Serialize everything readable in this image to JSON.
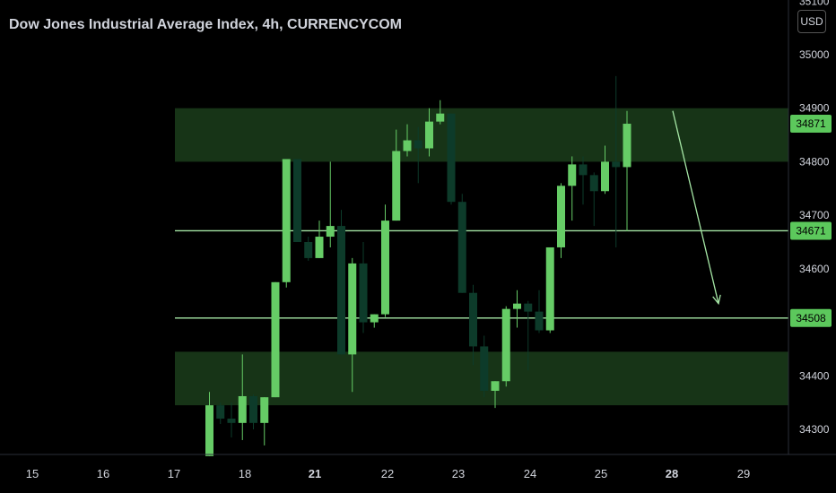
{
  "header": {
    "title": "Dow Jones Industrial Average Index, 4h, CURRENCYCOM",
    "currency": "USD"
  },
  "colors": {
    "background": "#000000",
    "bull": "#66cc66",
    "bear": "#0d3b2a",
    "level": "#a5e6a5",
    "zone": "#1a3a1a",
    "label_bg": "#5cc85c"
  },
  "chart_data": {
    "type": "candlestick",
    "symbol": "Dow Jones Industrial Average Index",
    "interval": "4h",
    "source": "CURRENCYCOM",
    "y_axis": {
      "ticks": [
        34300,
        34400,
        34500,
        34600,
        34700,
        34800,
        34900,
        35000,
        35100
      ],
      "range": [
        34270,
        35110
      ]
    },
    "x_axis": {
      "ticks": [
        {
          "label": "15",
          "bold": false
        },
        {
          "label": "16",
          "bold": false
        },
        {
          "label": "17",
          "bold": false
        },
        {
          "label": "18",
          "bold": false
        },
        {
          "label": "21",
          "bold": true
        },
        {
          "label": "22",
          "bold": false
        },
        {
          "label": "23",
          "bold": false
        },
        {
          "label": "24",
          "bold": false
        },
        {
          "label": "25",
          "bold": false
        },
        {
          "label": "28",
          "bold": true
        },
        {
          "label": "29",
          "bold": false
        }
      ]
    },
    "price_labels": [
      {
        "value": "34871",
        "price": 34871
      },
      {
        "value": "34671",
        "price": 34671
      },
      {
        "value": "34508",
        "price": 34508
      }
    ],
    "horizontal_levels": [
      34671,
      34508
    ],
    "zones": [
      {
        "top": 34900,
        "bottom": 34800
      },
      {
        "top": 34445,
        "bottom": 34345
      }
    ],
    "candles": [
      {
        "o": 34250,
        "h": 34370,
        "l": 34250,
        "c": 34345
      },
      {
        "o": 34345,
        "h": 34350,
        "l": 34310,
        "c": 34320
      },
      {
        "o": 34320,
        "h": 34350,
        "l": 34285,
        "c": 34312
      },
      {
        "o": 34312,
        "h": 34440,
        "l": 34280,
        "c": 34362
      },
      {
        "o": 34362,
        "h": 34365,
        "l": 34300,
        "c": 34312
      },
      {
        "o": 34312,
        "h": 34360,
        "l": 34270,
        "c": 34360
      },
      {
        "o": 34360,
        "h": 34575,
        "l": 34360,
        "c": 34575
      },
      {
        "o": 34575,
        "h": 34805,
        "l": 34565,
        "c": 34805
      },
      {
        "o": 34805,
        "h": 34805,
        "l": 34650,
        "c": 34650
      },
      {
        "o": 34650,
        "h": 34660,
        "l": 34615,
        "c": 34620
      },
      {
        "o": 34620,
        "h": 34690,
        "l": 34620,
        "c": 34660
      },
      {
        "o": 34660,
        "h": 34800,
        "l": 34640,
        "c": 34680
      },
      {
        "o": 34680,
        "h": 34710,
        "l": 34440,
        "c": 34440
      },
      {
        "o": 34440,
        "h": 34620,
        "l": 34370,
        "c": 34610
      },
      {
        "o": 34610,
        "h": 34650,
        "l": 34480,
        "c": 34500
      },
      {
        "o": 34500,
        "h": 34515,
        "l": 34490,
        "c": 34515
      },
      {
        "o": 34515,
        "h": 34720,
        "l": 34510,
        "c": 34690
      },
      {
        "o": 34690,
        "h": 34860,
        "l": 34690,
        "c": 34820
      },
      {
        "o": 34820,
        "h": 34870,
        "l": 34810,
        "c": 34840
      },
      {
        "o": 34840,
        "h": 34865,
        "l": 34760,
        "c": 34825
      },
      {
        "o": 34825,
        "h": 34900,
        "l": 34810,
        "c": 34875
      },
      {
        "o": 34875,
        "h": 34915,
        "l": 34870,
        "c": 34890
      },
      {
        "o": 34890,
        "h": 34890,
        "l": 34720,
        "c": 34725
      },
      {
        "o": 34725,
        "h": 34740,
        "l": 34555,
        "c": 34555
      },
      {
        "o": 34555,
        "h": 34570,
        "l": 34420,
        "c": 34455
      },
      {
        "o": 34455,
        "h": 34475,
        "l": 34360,
        "c": 34372
      },
      {
        "o": 34372,
        "h": 34390,
        "l": 34340,
        "c": 34390
      },
      {
        "o": 34390,
        "h": 34530,
        "l": 34380,
        "c": 34525
      },
      {
        "o": 34525,
        "h": 34560,
        "l": 34490,
        "c": 34535
      },
      {
        "o": 34535,
        "h": 34540,
        "l": 34410,
        "c": 34520
      },
      {
        "o": 34520,
        "h": 34560,
        "l": 34480,
        "c": 34485
      },
      {
        "o": 34485,
        "h": 34640,
        "l": 34480,
        "c": 34640
      },
      {
        "o": 34640,
        "h": 34760,
        "l": 34620,
        "c": 34755
      },
      {
        "o": 34755,
        "h": 34810,
        "l": 34690,
        "c": 34795
      },
      {
        "o": 34795,
        "h": 34810,
        "l": 34720,
        "c": 34775
      },
      {
        "o": 34775,
        "h": 34780,
        "l": 34680,
        "c": 34745
      },
      {
        "o": 34745,
        "h": 34830,
        "l": 34740,
        "c": 34800
      },
      {
        "o": 34800,
        "h": 34960,
        "l": 34640,
        "c": 34790
      },
      {
        "o": 34790,
        "h": 34895,
        "l": 34670,
        "c": 34871
      }
    ],
    "arrow": {
      "from_price": 34895,
      "to_price": 34535
    }
  }
}
